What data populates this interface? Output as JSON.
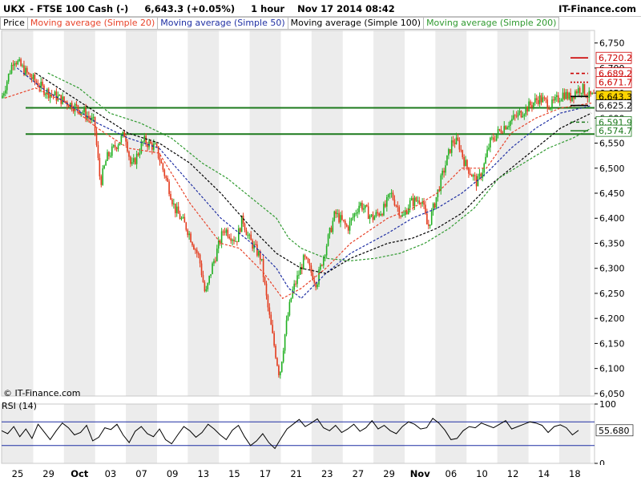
{
  "header": {
    "symbol": "UKX",
    "instrument": "- FTSE 100 Cash (-)",
    "quote": "6,643.3 (+0.05%)",
    "timeframe": "1 hour",
    "datetime": "Nov 17 2014 08:42",
    "brand": "IT-Finance.com"
  },
  "legend": [
    {
      "label": "Price",
      "color": "#000000"
    },
    {
      "label": "Moving average (Simple 20)",
      "color": "#e8432a"
    },
    {
      "label": "Moving average (Simple 50)",
      "color": "#1f2fa3"
    },
    {
      "label": "Moving average (Simple 100)",
      "color": "#000000"
    },
    {
      "label": "Moving average (Simple 200)",
      "color": "#2f9a2f"
    }
  ],
  "copyright": "© IT-Finance.com",
  "rsi_label": "RSI (14)",
  "chart_data": [
    {
      "type": "candlestick",
      "title": "UKX - FTSE 100 Cash (-) 6,643.3 (+0.05%) 1 hour Nov 17 2014 08:42",
      "ylim": [
        6045,
        6775
      ],
      "y_ticks": [
        "6,050",
        "6,100",
        "6,150",
        "6,200",
        "6,250",
        "6,300",
        "6,350",
        "6,400",
        "6,450",
        "6,500",
        "6,550",
        "6,600",
        "6,650",
        "6,700",
        "6,750"
      ],
      "x_ticks": [
        "25",
        "29",
        "Oct",
        "03",
        "07",
        "09",
        "13",
        "15",
        "17",
        "21",
        "23",
        "27",
        "29",
        "Nov",
        "06",
        "10",
        "12",
        "14",
        "18"
      ],
      "x_ticks_bold": [
        "Oct",
        "Nov"
      ],
      "grid": true,
      "candle_colors": {
        "up": "#22b022",
        "down": "#e33a1c"
      },
      "price_path": [
        [
          0,
          6640
        ],
        [
          2,
          6720
        ],
        [
          4,
          6690
        ],
        [
          7,
          6655
        ],
        [
          10,
          6635
        ],
        [
          13,
          6615
        ],
        [
          15,
          6590
        ],
        [
          16,
          6470
        ],
        [
          17,
          6520
        ],
        [
          20,
          6570
        ],
        [
          21,
          6500
        ],
        [
          23,
          6555
        ],
        [
          25,
          6540
        ],
        [
          27,
          6465
        ],
        [
          28,
          6420
        ],
        [
          30,
          6380
        ],
        [
          32,
          6320
        ],
        [
          33,
          6245
        ],
        [
          34,
          6300
        ],
        [
          36,
          6380
        ],
        [
          38,
          6355
        ],
        [
          39,
          6400
        ],
        [
          40,
          6360
        ],
        [
          42,
          6320
        ],
        [
          43,
          6230
        ],
        [
          44,
          6155
        ],
        [
          45,
          6085
        ],
        [
          46,
          6180
        ],
        [
          47,
          6250
        ],
        [
          49,
          6320
        ],
        [
          51,
          6270
        ],
        [
          52,
          6320
        ],
        [
          54,
          6410
        ],
        [
          56,
          6380
        ],
        [
          58,
          6430
        ],
        [
          60,
          6400
        ],
        [
          62,
          6420
        ],
        [
          63,
          6450
        ],
        [
          65,
          6400
        ],
        [
          66,
          6430
        ],
        [
          68,
          6440
        ],
        [
          69,
          6380
        ],
        [
          71,
          6470
        ],
        [
          73,
          6555
        ],
        [
          74,
          6550
        ],
        [
          75,
          6510
        ],
        [
          76,
          6490
        ],
        [
          77,
          6470
        ],
        [
          78,
          6500
        ],
        [
          79,
          6550
        ],
        [
          81,
          6580
        ],
        [
          83,
          6600
        ],
        [
          85,
          6620
        ],
        [
          87,
          6640
        ],
        [
          89,
          6625
        ],
        [
          91,
          6650
        ],
        [
          92,
          6640
        ],
        [
          93,
          6655
        ],
        [
          94,
          6660
        ],
        [
          95,
          6643.3
        ]
      ],
      "moving_averages": [
        {
          "name": "Moving average (Simple 20)",
          "color": "#e8432a",
          "dash": "3,2",
          "values": [
            [
              0,
              6640
            ],
            [
              5,
              6660
            ],
            [
              10,
              6630
            ],
            [
              15,
              6580
            ],
            [
              20,
              6540
            ],
            [
              25,
              6530
            ],
            [
              30,
              6430
            ],
            [
              35,
              6350
            ],
            [
              38,
              6340
            ],
            [
              42,
              6290
            ],
            [
              45,
              6240
            ],
            [
              48,
              6260
            ],
            [
              52,
              6300
            ],
            [
              56,
              6350
            ],
            [
              62,
              6400
            ],
            [
              66,
              6420
            ],
            [
              70,
              6450
            ],
            [
              74,
              6500
            ],
            [
              78,
              6500
            ],
            [
              82,
              6570
            ],
            [
              86,
              6600
            ],
            [
              90,
              6620
            ],
            [
              95,
              6630
            ]
          ]
        },
        {
          "name": "Moving average (Simple 50)",
          "color": "#1f2fa3",
          "dash": "3,2",
          "values": [
            [
              2,
              6700
            ],
            [
              6,
              6660
            ],
            [
              10,
              6630
            ],
            [
              15,
              6590
            ],
            [
              20,
              6560
            ],
            [
              25,
              6540
            ],
            [
              30,
              6470
            ],
            [
              35,
              6400
            ],
            [
              40,
              6350
            ],
            [
              44,
              6300
            ],
            [
              46,
              6260
            ],
            [
              48,
              6240
            ],
            [
              52,
              6290
            ],
            [
              56,
              6330
            ],
            [
              62,
              6370
            ],
            [
              66,
              6400
            ],
            [
              70,
              6420
            ],
            [
              74,
              6450
            ],
            [
              78,
              6490
            ],
            [
              82,
              6540
            ],
            [
              86,
              6580
            ],
            [
              90,
              6610
            ],
            [
              95,
              6625
            ]
          ]
        },
        {
          "name": "Moving average (Simple 100)",
          "color": "#000000",
          "dash": "3,2",
          "values": [
            [
              5,
              6690
            ],
            [
              10,
              6650
            ],
            [
              15,
              6610
            ],
            [
              20,
              6570
            ],
            [
              25,
              6550
            ],
            [
              30,
              6510
            ],
            [
              35,
              6450
            ],
            [
              40,
              6380
            ],
            [
              44,
              6330
            ],
            [
              48,
              6300
            ],
            [
              52,
              6290
            ],
            [
              56,
              6320
            ],
            [
              62,
              6350
            ],
            [
              66,
              6360
            ],
            [
              70,
              6380
            ],
            [
              74,
              6410
            ],
            [
              78,
              6460
            ],
            [
              82,
              6500
            ],
            [
              86,
              6540
            ],
            [
              90,
              6580
            ],
            [
              95,
              6610
            ]
          ]
        },
        {
          "name": "Moving average (Simple 200)",
          "color": "#2f9a2f",
          "dash": "3,2",
          "values": [
            [
              7,
              6690
            ],
            [
              12,
              6660
            ],
            [
              17,
              6610
            ],
            [
              22,
              6590
            ],
            [
              27,
              6560
            ],
            [
              32,
              6510
            ],
            [
              36,
              6480
            ],
            [
              40,
              6440
            ],
            [
              44,
              6400
            ],
            [
              46,
              6360
            ],
            [
              48,
              6340
            ],
            [
              52,
              6320
            ],
            [
              56,
              6315
            ],
            [
              60,
              6320
            ],
            [
              64,
              6330
            ],
            [
              68,
              6350
            ],
            [
              72,
              6380
            ],
            [
              76,
              6420
            ],
            [
              80,
              6480
            ],
            [
              84,
              6510
            ],
            [
              88,
              6540
            ],
            [
              92,
              6560
            ],
            [
              95,
              6580
            ]
          ]
        }
      ],
      "horizontal_lines": [
        {
          "value": 6620.5,
          "color": "#1d7a1d"
        },
        {
          "value": 6568,
          "color": "#1d7a1d"
        }
      ],
      "price_labels": [
        {
          "value": 6720.2,
          "label": "6,720.2",
          "color": "#cc0000",
          "style": "solid"
        },
        {
          "value": 6689.2,
          "label": "6,689.2",
          "color": "#cc0000",
          "style": "dashed"
        },
        {
          "value": 6671.7,
          "label": "6,671.7",
          "color": "#cc0000",
          "style": "dotted"
        },
        {
          "value": 6643.3,
          "label": "6,643.3",
          "color": "#000000",
          "style": "current"
        },
        {
          "value": 6625.2,
          "label": "6,625.2",
          "color": "#000000",
          "style": "plain"
        },
        {
          "value": 6591.9,
          "label": "6,591.9",
          "color": "#1d7a1d",
          "style": "dashed"
        },
        {
          "value": 6574.7,
          "label": "6,574.7",
          "color": "#1d7a1d",
          "style": "solid"
        }
      ]
    },
    {
      "type": "line",
      "title": "RSI (14)",
      "ylim": [
        0,
        100
      ],
      "y_ticks": [
        "0",
        "100"
      ],
      "bands": [
        70,
        30
      ],
      "last_value_label": "55.680",
      "values": [
        55,
        50,
        62,
        45,
        58,
        42,
        66,
        53,
        40,
        55,
        68,
        60,
        48,
        52,
        64,
        38,
        44,
        60,
        57,
        66,
        48,
        35,
        54,
        62,
        50,
        45,
        58,
        40,
        33,
        48,
        62,
        55,
        44,
        52,
        66,
        58,
        48,
        40,
        56,
        64,
        45,
        30,
        38,
        50,
        35,
        25,
        42,
        58,
        66,
        74,
        62,
        68,
        75,
        60,
        55,
        64,
        52,
        58,
        66,
        54,
        60,
        72,
        58,
        64,
        55,
        50,
        62,
        70,
        66,
        58,
        60,
        76,
        68,
        56,
        40,
        42,
        55,
        62,
        60,
        68,
        64,
        60,
        66,
        72,
        58,
        62,
        66,
        70,
        68,
        64,
        52,
        62,
        65,
        60,
        48,
        55.68
      ]
    }
  ]
}
